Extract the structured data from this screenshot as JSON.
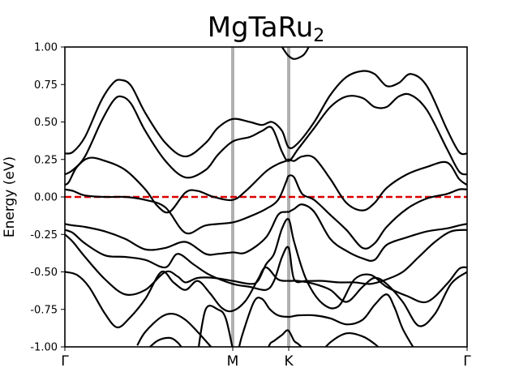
{
  "chart_data": {
    "type": "line",
    "title": "MgTaRu",
    "title_subscript": "2",
    "ylabel": "Energy (eV)",
    "xlabel": "",
    "ylim": [
      -1.0,
      1.0
    ],
    "yticks": [
      "1.00",
      "0.75",
      "0.50",
      "0.25",
      "0.00",
      "-0.25",
      "-0.50",
      "-0.75",
      "-1.00"
    ],
    "ytick_values": [
      1.0,
      0.75,
      0.5,
      0.25,
      0.0,
      -0.25,
      -0.5,
      -0.75,
      -1.0
    ],
    "xlim": [
      0,
      1
    ],
    "kpoints": [
      {
        "label": "Γ",
        "x": 0.0
      },
      {
        "label": "M",
        "x": 0.4173
      },
      {
        "label": "K",
        "x": 0.5565
      },
      {
        "label": "Γ",
        "x": 1.0
      }
    ],
    "fermi_level": 0.0,
    "colors": {
      "bands": "#000000",
      "fermi": "#dd0000",
      "kline": "#b0b0b0"
    },
    "grid": false,
    "legend": "none",
    "bands": [
      {
        "name": "",
        "x": [
          0,
          0.02,
          0.05,
          0.09,
          0.12,
          0.14,
          0.165,
          0.2,
          0.25,
          0.3,
          0.35,
          0.38,
          0.4173,
          0.46,
          0.49,
          0.515,
          0.54,
          0.5565,
          0.58,
          0.62,
          0.66,
          0.7,
          0.74,
          0.77,
          0.8,
          0.83,
          0.86,
          0.9,
          0.95,
          0.98,
          1.0
        ],
        "y": [
          0.29,
          0.3,
          0.4,
          0.64,
          0.76,
          0.78,
          0.74,
          0.56,
          0.36,
          0.27,
          0.36,
          0.46,
          0.52,
          0.5,
          0.48,
          0.5,
          0.44,
          0.33,
          0.36,
          0.5,
          0.68,
          0.8,
          0.84,
          0.82,
          0.74,
          0.76,
          0.82,
          0.74,
          0.45,
          0.3,
          0.29
        ]
      },
      {
        "name": "",
        "x": [
          0,
          0.02,
          0.05,
          0.09,
          0.12,
          0.14,
          0.165,
          0.2,
          0.25,
          0.3,
          0.35,
          0.38,
          0.4173,
          0.46,
          0.49,
          0.515,
          0.54,
          0.5565,
          0.58,
          0.62,
          0.66,
          0.7,
          0.74,
          0.77,
          0.8,
          0.83,
          0.86,
          0.9,
          0.95,
          0.98,
          1.0
        ],
        "y": [
          0.15,
          0.18,
          0.27,
          0.5,
          0.64,
          0.67,
          0.62,
          0.44,
          0.24,
          0.13,
          0.18,
          0.28,
          0.37,
          0.4,
          0.44,
          0.46,
          0.3,
          0.24,
          0.32,
          0.46,
          0.6,
          0.67,
          0.66,
          0.6,
          0.6,
          0.67,
          0.68,
          0.58,
          0.32,
          0.17,
          0.15
        ]
      },
      {
        "name": "",
        "x": [
          0,
          0.01,
          0.03,
          0.06,
          0.1,
          0.15,
          0.2,
          0.23,
          0.26,
          0.3,
          0.33,
          0.37,
          0.4173,
          0.45,
          0.5,
          0.53,
          0.55,
          0.5565,
          0.57,
          0.59,
          0.62,
          0.66,
          0.7,
          0.74,
          0.77,
          0.8,
          0.85,
          0.9,
          0.95,
          0.98,
          1.0
        ],
        "y": [
          0.08,
          0.1,
          0.2,
          0.26,
          0.24,
          0.18,
          0.05,
          -0.06,
          -0.1,
          0.03,
          0.04,
          0.0,
          -0.02,
          0.04,
          0.17,
          0.22,
          0.24,
          0.25,
          0.24,
          0.27,
          0.26,
          0.12,
          -0.04,
          -0.09,
          -0.04,
          0.06,
          0.15,
          0.2,
          0.23,
          0.12,
          0.08
        ]
      },
      {
        "name": "",
        "x": [
          0,
          0.02,
          0.05,
          0.1,
          0.15,
          0.2,
          0.25,
          0.3,
          0.35,
          0.4173,
          0.46,
          0.5,
          0.53,
          0.55,
          0.5565,
          0.57,
          0.59,
          0.62,
          0.66,
          0.7,
          0.74,
          0.77,
          0.8,
          0.85,
          0.9,
          0.95,
          0.98,
          1.0
        ],
        "y": [
          0.05,
          0.04,
          0.01,
          0.0,
          0.0,
          -0.02,
          -0.07,
          -0.24,
          -0.19,
          -0.17,
          -0.13,
          -0.08,
          -0.02,
          0.1,
          0.14,
          0.13,
          0.02,
          -0.02,
          -0.12,
          -0.22,
          -0.34,
          -0.31,
          -0.2,
          -0.08,
          -0.01,
          0.02,
          0.05,
          0.05
        ]
      },
      {
        "name": "",
        "x": [
          0,
          0.02,
          0.05,
          0.1,
          0.15,
          0.2,
          0.25,
          0.3,
          0.35,
          0.38,
          0.4173,
          0.45,
          0.5,
          0.53,
          0.55,
          0.5565,
          0.57,
          0.59,
          0.62,
          0.66,
          0.7,
          0.74,
          0.77,
          0.8,
          0.85,
          0.9,
          0.95,
          0.98,
          1.0
        ],
        "y": [
          -0.18,
          -0.19,
          -0.2,
          -0.23,
          -0.28,
          -0.35,
          -0.34,
          -0.3,
          -0.38,
          -0.38,
          -0.37,
          -0.37,
          -0.27,
          -0.12,
          -0.1,
          -0.1,
          -0.08,
          -0.05,
          -0.1,
          -0.28,
          -0.36,
          -0.41,
          -0.42,
          -0.32,
          -0.27,
          -0.23,
          -0.21,
          -0.19,
          -0.18
        ]
      },
      {
        "name": "",
        "x": [
          0,
          0.02,
          0.05,
          0.1,
          0.15,
          0.2,
          0.25,
          0.28,
          0.32,
          0.36,
          0.4173,
          0.46,
          0.5,
          0.52,
          0.54,
          0.5565,
          0.57,
          0.6,
          0.64,
          0.68,
          0.72,
          0.76,
          0.8,
          0.84,
          0.88,
          0.92,
          0.96,
          1.0
        ],
        "y": [
          -0.22,
          -0.24,
          -0.31,
          -0.39,
          -0.4,
          -0.42,
          -0.47,
          -0.38,
          -0.45,
          -0.52,
          -0.58,
          -0.6,
          -0.62,
          -0.56,
          -0.4,
          -0.34,
          -0.55,
          -0.56,
          -0.56,
          -0.57,
          -0.57,
          -0.58,
          -0.55,
          -0.5,
          -0.4,
          -0.3,
          -0.23,
          -0.22
        ]
      },
      {
        "name": "",
        "x": [
          0,
          0.02,
          0.05,
          0.1,
          0.15,
          0.2,
          0.25,
          0.28,
          0.3,
          0.33,
          0.37,
          0.4173,
          0.46,
          0.48,
          0.5,
          0.52,
          0.54,
          0.5565,
          0.57,
          0.6,
          0.64,
          0.68,
          0.72,
          0.76,
          0.8,
          0.85,
          0.9,
          0.95,
          0.98,
          1.0
        ],
        "y": [
          -0.25,
          -0.3,
          -0.4,
          -0.55,
          -0.65,
          -0.62,
          -0.5,
          -0.53,
          -0.57,
          -0.54,
          -0.54,
          -0.56,
          -0.58,
          -0.56,
          -0.45,
          -0.38,
          -0.21,
          -0.15,
          -0.3,
          -0.55,
          -0.71,
          -0.73,
          -0.55,
          -0.52,
          -0.6,
          -0.66,
          -0.7,
          -0.58,
          -0.48,
          -0.47
        ]
      },
      {
        "name": "",
        "x": [
          0,
          0.03,
          0.06,
          0.1,
          0.13,
          0.16,
          0.2,
          0.24,
          0.27,
          0.3,
          0.33,
          0.36,
          0.39,
          0.4173,
          0.45,
          0.48,
          0.5,
          0.53,
          0.5565,
          0.58,
          0.62,
          0.66,
          0.7,
          0.74,
          0.77,
          0.8,
          0.84,
          0.88,
          0.92,
          0.96,
          1.0
        ],
        "y": [
          -0.5,
          -0.52,
          -0.6,
          -0.78,
          -0.87,
          -0.81,
          -0.68,
          -0.5,
          -0.57,
          -0.62,
          -0.56,
          -0.64,
          -0.74,
          -0.76,
          -0.69,
          -0.55,
          -0.47,
          -0.55,
          -0.56,
          -0.56,
          -0.58,
          -0.62,
          -0.7,
          -0.6,
          -0.54,
          -0.58,
          -0.7,
          -0.86,
          -0.78,
          -0.58,
          -0.5
        ]
      },
      {
        "name": "",
        "x": [
          0.18,
          0.2,
          0.24,
          0.27,
          0.3,
          0.33,
          0.36,
          0.39,
          0.4173,
          0.44,
          0.47,
          0.49,
          0.51,
          0.53,
          0.5565,
          0.58,
          0.62,
          0.66,
          0.7,
          0.74,
          0.77,
          0.8,
          0.82,
          0.84,
          0.87
        ],
        "y": [
          -0.99,
          -0.9,
          -0.8,
          -0.78,
          -0.82,
          -0.9,
          -0.99,
          -1.08,
          -1.15,
          -0.93,
          -0.7,
          -0.68,
          -0.75,
          -0.79,
          -0.8,
          -0.79,
          -0.79,
          -0.81,
          -0.85,
          -0.82,
          -0.72,
          -0.65,
          -0.74,
          -0.88,
          -1.02
        ]
      },
      {
        "name": "",
        "x": [
          0.33,
          0.35,
          0.38,
          0.4,
          0.42
        ],
        "y": [
          -1.05,
          -0.75,
          -0.75,
          -0.81,
          -1.05
        ]
      },
      {
        "name": "",
        "x": [
          0.2,
          0.23,
          0.26,
          0.28,
          0.3,
          0.34
        ],
        "y": [
          -1.03,
          -0.96,
          -0.94,
          -0.97,
          -1.03,
          -1.1
        ]
      },
      {
        "name": "",
        "x": [
          0.63,
          0.66,
          0.7,
          0.74,
          0.77,
          0.8,
          0.84
        ],
        "y": [
          -1.06,
          -0.97,
          -0.91,
          -0.93,
          -0.98,
          -1.05,
          -1.1
        ]
      },
      {
        "name": "",
        "x": [
          0.5,
          0.51,
          0.52,
          0.54,
          0.555,
          0.57,
          0.58,
          0.6,
          0.62
        ],
        "y": [
          -1.05,
          -0.98,
          -0.96,
          -0.92,
          -0.89,
          -0.96,
          -0.98,
          -1.03,
          -1.08
        ]
      },
      {
        "name": "",
        "x": [
          0.53,
          0.54,
          0.55,
          0.5565,
          0.57,
          0.59,
          0.6,
          0.61
        ],
        "y": [
          1.04,
          1.0,
          0.96,
          0.94,
          0.92,
          0.94,
          0.97,
          1.02
        ]
      }
    ]
  }
}
